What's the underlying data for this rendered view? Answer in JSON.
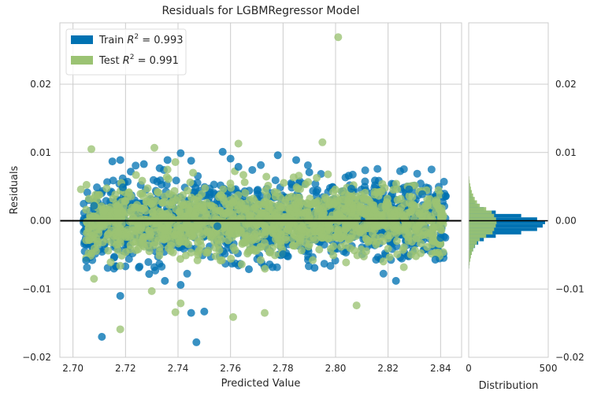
{
  "chart_data": {
    "type": "scatter",
    "title": "Residuals for LGBMRegressor Model",
    "xlabel": "Predicted Value",
    "ylabel": "Residuals",
    "xlim": [
      2.695,
      2.848
    ],
    "ylim": [
      -0.02,
      0.029
    ],
    "x_ticks": [
      "2.70",
      "2.72",
      "2.74",
      "2.76",
      "2.78",
      "2.80",
      "2.82",
      "2.84"
    ],
    "x_tick_values": [
      2.7,
      2.72,
      2.74,
      2.76,
      2.78,
      2.8,
      2.82,
      2.84
    ],
    "y_ticks": [
      "0.02",
      "0.01",
      "0.00",
      "−0.01",
      "−0.02"
    ],
    "y_tick_values": [
      0.02,
      0.01,
      0.0,
      -0.01,
      -0.02
    ],
    "grid": true,
    "legend_position": "top-left",
    "series": [
      {
        "name": "Train",
        "legend_suffix": " = 0.993",
        "color": "#0072B2",
        "points": [
          [
            2.711,
            -0.017
          ],
          [
            2.747,
            -0.0178
          ],
          [
            2.75,
            -0.0133
          ],
          [
            2.745,
            -0.0135
          ],
          [
            2.718,
            -0.011
          ],
          [
            2.823,
            -0.0088
          ],
          [
            2.792,
            -0.0069
          ],
          [
            2.767,
            -0.0071
          ],
          [
            2.705,
            -0.0058
          ],
          [
            2.838,
            -0.0057
          ],
          [
            2.735,
            -0.0088
          ],
          [
            2.78,
            -0.0049
          ],
          [
            2.842,
            0.0036
          ],
          [
            2.755,
            -0.0008
          ],
          [
            2.715,
            0.0087
          ],
          [
            2.718,
            0.0089
          ],
          [
            2.727,
            0.0083
          ],
          [
            2.719,
            0.0049
          ],
          [
            2.778,
            0.0096
          ],
          [
            2.76,
            0.0091
          ],
          [
            2.733,
            0.0077
          ],
          [
            2.79,
            0.0071
          ],
          [
            2.805,
            0.0066
          ],
          [
            2.815,
            0.0059
          ],
          [
            2.828,
            0.0046
          ],
          [
            2.806,
            0.0047
          ],
          [
            2.763,
            0.0079
          ],
          [
            2.745,
            0.0088
          ],
          [
            2.722,
            0.0072
          ],
          [
            2.757,
            0.0101
          ],
          [
            2.741,
            0.0099
          ],
          [
            2.708,
            0.0022
          ],
          [
            2.736,
            0.0089
          ],
          [
            2.785,
            0.0089
          ],
          [
            2.833,
            0.0039
          ],
          [
            2.84,
            -0.0025
          ],
          [
            2.741,
            -0.0094
          ],
          [
            2.729,
            -0.0078
          ]
        ]
      },
      {
        "name": "Test",
        "legend_suffix": " = 0.991",
        "color": "#9BC373",
        "points": [
          [
            2.801,
            0.0269
          ],
          [
            2.707,
            0.0105
          ],
          [
            2.795,
            0.0115
          ],
          [
            2.763,
            0.0113
          ],
          [
            2.731,
            0.0107
          ],
          [
            2.718,
            -0.0159
          ],
          [
            2.739,
            -0.0134
          ],
          [
            2.761,
            -0.0141
          ],
          [
            2.773,
            -0.0135
          ],
          [
            2.808,
            -0.0124
          ],
          [
            2.703,
            0.0046
          ],
          [
            2.841,
            -0.0046
          ],
          [
            2.724,
            0.0067
          ],
          [
            2.809,
            -0.0013
          ],
          [
            2.83,
            0.0019
          ],
          [
            2.706,
            -0.0011
          ],
          [
            2.741,
            -0.0121
          ],
          [
            2.73,
            -0.0103
          ],
          [
            2.708,
            -0.0085
          ],
          [
            2.804,
            -0.0061
          ],
          [
            2.786,
            0.0066
          ],
          [
            2.826,
            -0.0068
          ],
          [
            2.841,
            0.0008
          ],
          [
            2.792,
            -0.0005
          ],
          [
            2.749,
            0.0039
          ],
          [
            2.739,
            0.0086
          ],
          [
            2.733,
            -0.0039
          ],
          [
            2.813,
            0.0028
          ],
          [
            2.736,
            0.0075
          ],
          [
            2.82,
            -0.0041
          ]
        ]
      }
    ],
    "distribution_panel": {
      "xlabel": "Distribution",
      "x_ticks": [
        "0",
        "500"
      ],
      "x_tick_values": [
        0,
        500
      ],
      "xlim": [
        0,
        500
      ],
      "bin_width": 0.0005,
      "train_bin_edges": [
        -0.007,
        -0.0065,
        -0.006,
        -0.0055,
        -0.005,
        -0.0045,
        -0.004,
        -0.0035,
        -0.003,
        -0.0025,
        -0.002,
        -0.0015,
        -0.001,
        -0.0005,
        0.0,
        0.0005,
        0.001,
        0.0015,
        0.002,
        0.0025,
        0.003,
        0.0035,
        0.004,
        0.0045,
        0.005,
        0.0055,
        0.006,
        0.0065
      ],
      "train_counts": [
        3,
        5,
        8,
        12,
        18,
        28,
        40,
        60,
        95,
        170,
        330,
        430,
        465,
        480,
        430,
        330,
        170,
        95,
        60,
        40,
        28,
        18,
        12,
        8,
        5,
        3,
        2,
        1
      ],
      "test_bin_edges": [
        -0.007,
        -0.0065,
        -0.006,
        -0.0055,
        -0.005,
        -0.0045,
        -0.004,
        -0.0035,
        -0.003,
        -0.0025,
        -0.002,
        -0.0015,
        -0.001,
        -0.0005,
        0.0,
        0.0005,
        0.001,
        0.0015,
        0.002,
        0.0025,
        0.003,
        0.0035,
        0.004,
        0.0045,
        0.005,
        0.0055,
        0.006,
        0.0065
      ],
      "test_counts": [
        4,
        6,
        10,
        14,
        20,
        28,
        38,
        52,
        70,
        110,
        150,
        160,
        170,
        175,
        172,
        160,
        145,
        110,
        70,
        52,
        38,
        28,
        20,
        14,
        10,
        6,
        4,
        2
      ],
      "right_y_ticks": [
        "0.02",
        "0.01",
        "0.00",
        "−0.01",
        "−0.02"
      ]
    }
  }
}
